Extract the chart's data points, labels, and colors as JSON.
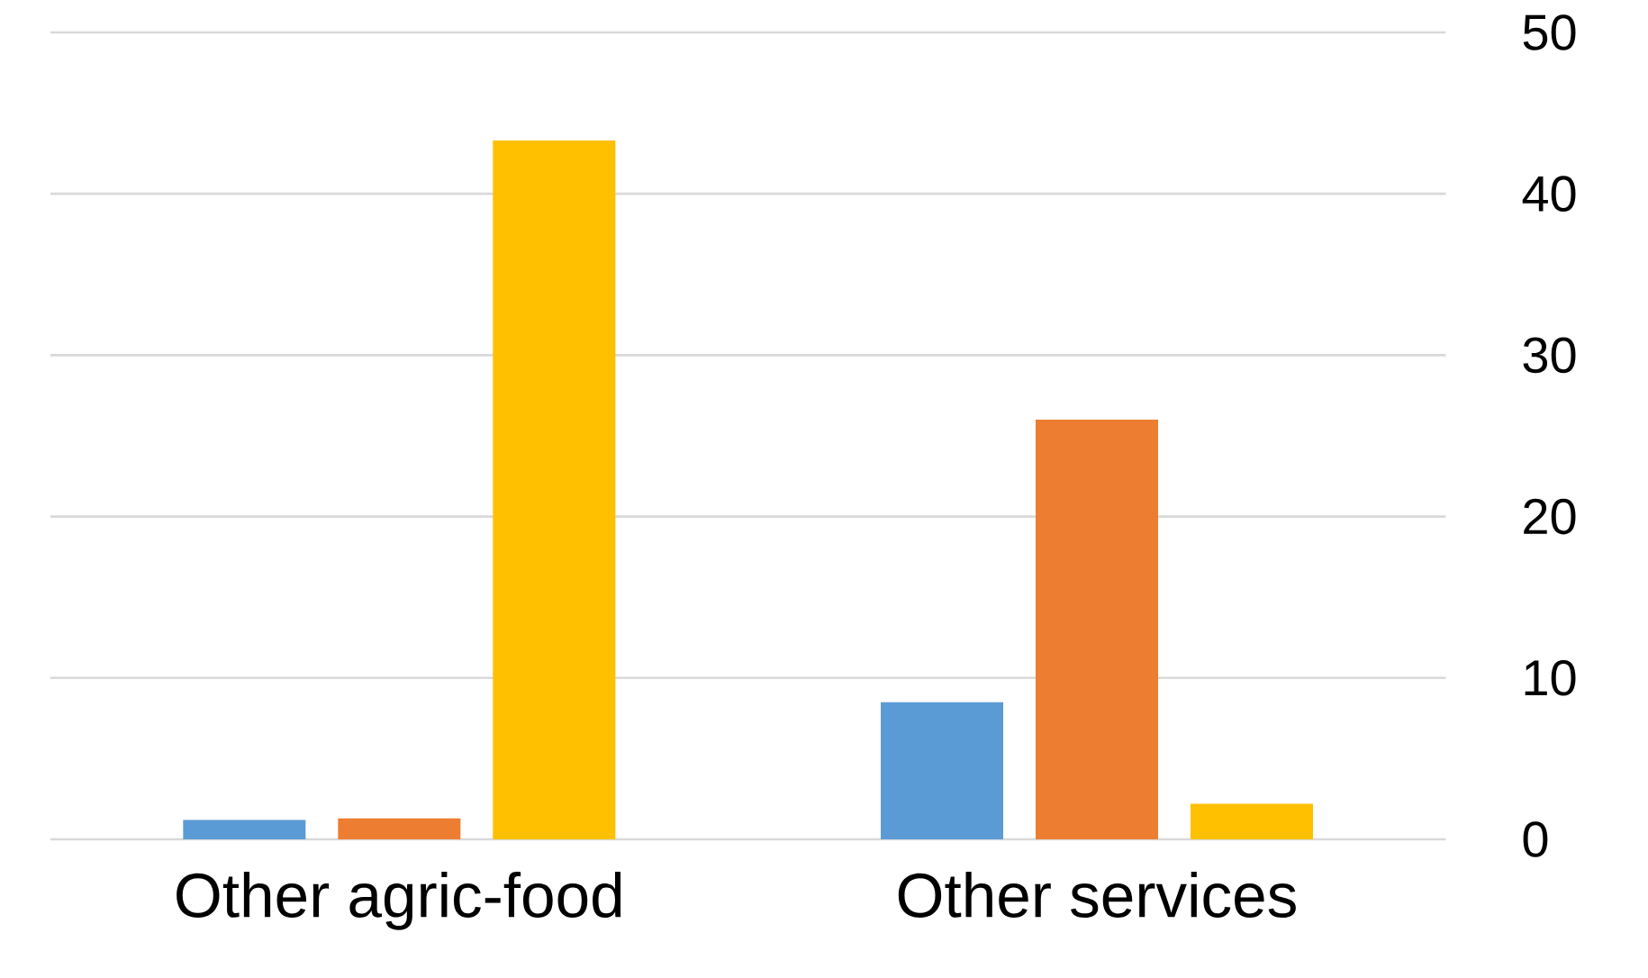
{
  "chart_data": {
    "type": "bar",
    "categories": [
      "Other agric-food",
      "Other services"
    ],
    "series": [
      {
        "color": "#5b9bd5",
        "values": [
          1.2,
          8.5
        ]
      },
      {
        "color": "#ed7d31",
        "values": [
          1.3,
          26.0
        ]
      },
      {
        "color": "#ffc000",
        "values": [
          43.3,
          2.2
        ]
      }
    ],
    "ylim": [
      0,
      50
    ],
    "yticks": [
      0,
      10,
      20,
      30,
      40,
      50
    ],
    "grid": "y"
  }
}
